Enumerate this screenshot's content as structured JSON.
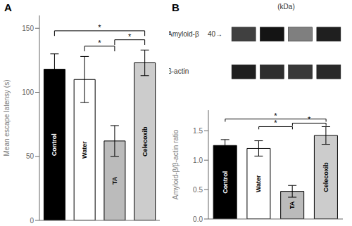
{
  "chart_data": [
    {
      "type": "bar",
      "title": "A",
      "categories": [
        "Control",
        "Water",
        "TA",
        "Celecoxib"
      ],
      "values": [
        118,
        110,
        62,
        123
      ],
      "errors": [
        12,
        18,
        12,
        10
      ],
      "colors": [
        "#000000",
        "#ffffff",
        "#bbbbbb",
        "#cccccc"
      ],
      "ylabel": "Mean escape latensy (s)",
      "ylim": [
        0,
        160
      ],
      "yticks": [
        0,
        50,
        100,
        150
      ],
      "tick_labels": "y",
      "annotations": [
        {
          "from": "Control",
          "to": "Celecoxib",
          "y": 148,
          "label": "*"
        },
        {
          "from": "Water",
          "to": "TA",
          "y": 136,
          "label": "*"
        },
        {
          "from": "TA",
          "to": "Celecoxib",
          "y": 141,
          "label": "*"
        }
      ]
    },
    {
      "type": "blot",
      "title": "B",
      "series": [
        {
          "name": "Amyloid-β",
          "values": [
            0.75,
            0.92,
            0.5,
            0.88
          ]
        },
        {
          "name": "β-actin",
          "values": [
            0.88,
            0.82,
            0.78,
            0.84
          ]
        }
      ],
      "annotations": [
        {
          "label": "(kDa)"
        },
        {
          "label": "40→",
          "series": "Amyloid-β"
        }
      ]
    },
    {
      "type": "bar",
      "categories": [
        "Control",
        "Water",
        "TA",
        "Celecoxib"
      ],
      "values": [
        1.25,
        1.2,
        0.47,
        1.42
      ],
      "errors": [
        0.1,
        0.13,
        0.1,
        0.15
      ],
      "colors": [
        "#000000",
        "#ffffff",
        "#bbbbbb",
        "#cccccc"
      ],
      "ylabel": "Amyloid-β/β-actin ratio",
      "ylim": [
        0,
        1.85
      ],
      "yticks": [
        {
          "value": 0,
          "label": "0.0"
        },
        0.5,
        {
          "value": 1.0,
          "label": "1.0"
        },
        1.5
      ],
      "tick_labels": "y",
      "annotations": [
        {
          "from": "Control",
          "to": "Celecoxib",
          "y": 1.7,
          "label": "*"
        },
        {
          "from": "Water",
          "to": "TA",
          "y": 1.57,
          "label": "*"
        },
        {
          "from": "TA",
          "to": "Celecoxib",
          "y": 1.63,
          "label": "*"
        }
      ]
    }
  ]
}
